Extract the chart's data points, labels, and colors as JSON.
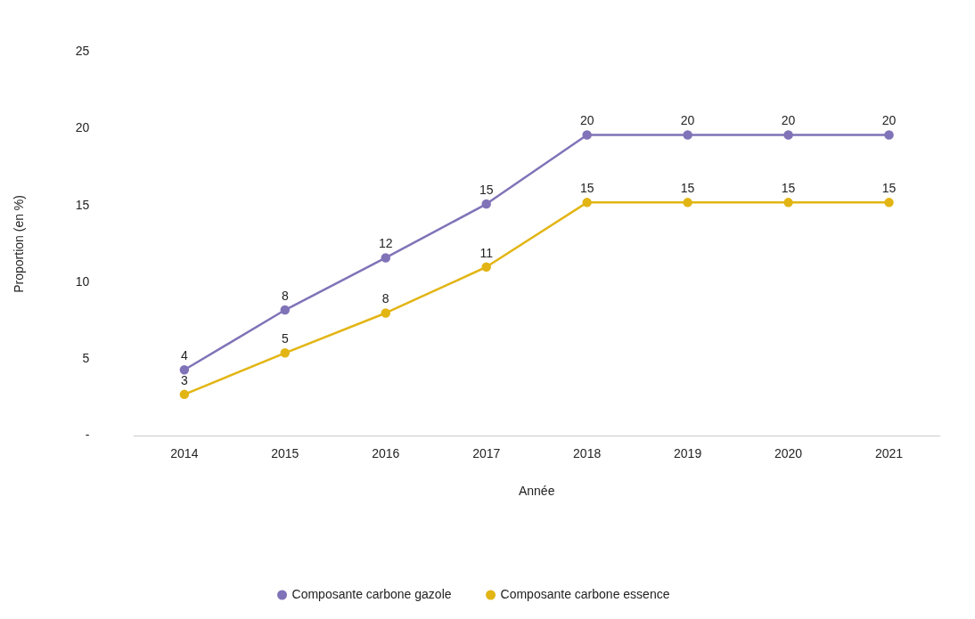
{
  "chart_data": {
    "type": "line",
    "xlabel": "Année",
    "ylabel": "Proportion (en %)",
    "categories": [
      "2014",
      "2015",
      "2016",
      "2017",
      "2018",
      "2019",
      "2020",
      "2021"
    ],
    "series": [
      {
        "name": "Composante carbone gazole",
        "color": "#8073b8",
        "values": [
          4.3,
          8.2,
          11.6,
          15.1,
          19.6,
          19.6,
          19.6,
          19.6
        ],
        "value_labels": [
          "4",
          "8",
          "12",
          "15",
          "20",
          "20",
          "20",
          "20"
        ]
      },
      {
        "name": "Composante carbone essence",
        "color": "#e2b514",
        "values": [
          2.7,
          5.4,
          8.0,
          11.0,
          15.2,
          15.2,
          15.2,
          15.2
        ],
        "value_labels": [
          "3",
          "5",
          "8",
          "11",
          "15",
          "15",
          "15",
          "15"
        ]
      }
    ],
    "ylim": [
      0,
      25
    ],
    "yticks": [
      {
        "value": 0,
        "label": "-"
      },
      5,
      10,
      15,
      20,
      25
    ],
    "grid": false,
    "legend": "bottom",
    "marker": "circle",
    "line_style": "solid"
  }
}
